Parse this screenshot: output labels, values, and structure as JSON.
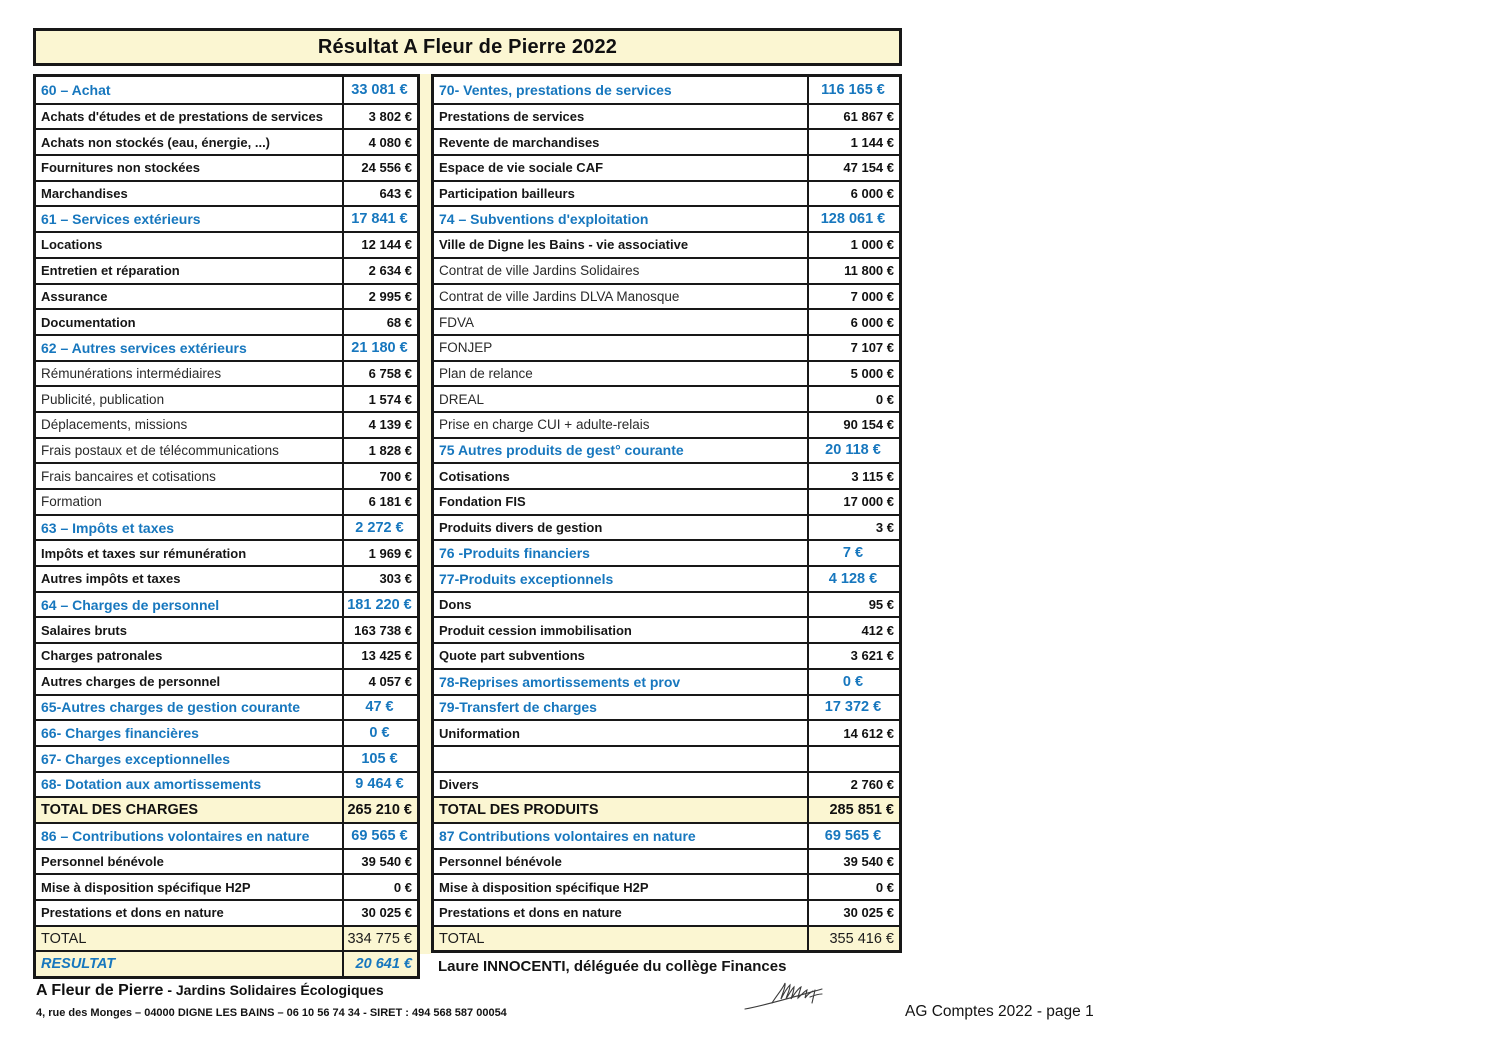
{
  "title": "Résultat A Fleur de Pierre 2022",
  "colors": {
    "accent_blue": "#1777be",
    "cream_background": "#fbf6d2",
    "border": "#181818"
  },
  "charges": {
    "rows": [
      {
        "type": "section",
        "label": "60 – Achat",
        "value": "33 081 €"
      },
      {
        "type": "item",
        "label": "Achats d'études et de prestations de services",
        "value": "3 802 €"
      },
      {
        "type": "item",
        "label": "Achats non stockés (eau, énergie, ...)",
        "value": "4 080 €"
      },
      {
        "type": "item",
        "label": "Fournitures non stockées",
        "value": "24 556 €"
      },
      {
        "type": "item",
        "label": "Marchandises",
        "value": "643 €"
      },
      {
        "type": "section",
        "label": "61 – Services extérieurs",
        "value": "17 841 €"
      },
      {
        "type": "item",
        "label": "Locations",
        "value": "12 144 €"
      },
      {
        "type": "item",
        "label": "Entretien et réparation",
        "value": "2 634 €"
      },
      {
        "type": "item",
        "label": "Assurance",
        "value": "2 995 €"
      },
      {
        "type": "item",
        "label": "Documentation",
        "value": "68 €"
      },
      {
        "type": "section",
        "label": "62 – Autres services extérieurs",
        "value": "21 180 €"
      },
      {
        "type": "item-light",
        "label": "Rémunérations intermédiaires",
        "value": "6 758 €"
      },
      {
        "type": "item-light",
        "label": "Publicité, publication",
        "value": "1 574 €"
      },
      {
        "type": "item-light",
        "label": "Déplacements, missions",
        "value": "4 139 €"
      },
      {
        "type": "item-light",
        "label": "Frais postaux et de télécommunications",
        "value": "1 828 €"
      },
      {
        "type": "item-light",
        "label": "Frais bancaires et cotisations",
        "value": "700 €"
      },
      {
        "type": "item-light",
        "label": "Formation",
        "value": "6 181 €"
      },
      {
        "type": "section",
        "label": "63 – Impôts et taxes",
        "value": "2 272 €"
      },
      {
        "type": "item",
        "label": "Impôts et taxes sur rémunération",
        "value": "1 969 €"
      },
      {
        "type": "item",
        "label": "Autres impôts et taxes",
        "value": "303 €"
      },
      {
        "type": "section",
        "label": "64 – Charges de personnel",
        "value": "181 220 €"
      },
      {
        "type": "item",
        "label": "Salaires bruts",
        "value": "163 738 €"
      },
      {
        "type": "item",
        "label": "Charges patronales",
        "value": "13 425 €"
      },
      {
        "type": "item",
        "label": "Autres charges de personnel",
        "value": "4 057 €"
      },
      {
        "type": "section",
        "label": "65-Autres charges de gestion courante",
        "value": "47 €"
      },
      {
        "type": "section",
        "label": "66- Charges financières",
        "value": "0 €"
      },
      {
        "type": "section",
        "label": "67- Charges exceptionnelles",
        "value": "105 €"
      },
      {
        "type": "section",
        "label": "68- Dotation aux amortissements",
        "value": "9 464 €"
      },
      {
        "type": "total-bold",
        "label": "TOTAL DES CHARGES",
        "value": "265 210 €"
      },
      {
        "type": "section",
        "label": "86 – Contributions volontaires en nature",
        "value": "69 565 €"
      },
      {
        "type": "item",
        "label": "Personnel bénévole",
        "value": "39 540 €"
      },
      {
        "type": "item",
        "label": "Mise à disposition spécifique H2P",
        "value": "0 €"
      },
      {
        "type": "item",
        "label": "Prestations et dons en nature",
        "value": "30 025 €"
      },
      {
        "type": "total",
        "label": "TOTAL",
        "value": "334 775 €"
      },
      {
        "type": "result",
        "label": "RESULTAT",
        "value": "20 641 €"
      }
    ]
  },
  "produits": {
    "rows": [
      {
        "type": "section",
        "label": "70- Ventes, prestations de services",
        "value": "116 165 €"
      },
      {
        "type": "item",
        "label": "Prestations de services",
        "value": "61 867 €"
      },
      {
        "type": "item",
        "label": "Revente de marchandises",
        "value": "1 144 €"
      },
      {
        "type": "item",
        "label": "Espace de vie sociale CAF",
        "value": "47 154 €"
      },
      {
        "type": "item",
        "label": "Participation bailleurs",
        "value": "6 000 €"
      },
      {
        "type": "section",
        "label": "74 – Subventions d'exploitation",
        "value": "128 061 €"
      },
      {
        "type": "item",
        "label": "Ville de Digne les Bains - vie associative",
        "value": "1 000 €"
      },
      {
        "type": "item-light",
        "label": "Contrat de ville Jardins Solidaires",
        "value": "11 800 €"
      },
      {
        "type": "item-light",
        "label": "Contrat de ville Jardins DLVA Manosque",
        "value": "7 000 €"
      },
      {
        "type": "item-light",
        "label": "FDVA",
        "value": "6 000 €"
      },
      {
        "type": "item-light",
        "label": "FONJEP",
        "value": "7 107 €"
      },
      {
        "type": "item-light",
        "label": "Plan de relance",
        "value": "5 000 €"
      },
      {
        "type": "item-light",
        "label": "DREAL",
        "value": "0 €"
      },
      {
        "type": "item-light",
        "label": "Prise en charge CUI + adulte-relais",
        "value": "90 154 €"
      },
      {
        "type": "section",
        "label": "75 Autres produits de gest° courante",
        "value": "20 118 €"
      },
      {
        "type": "item",
        "label": "Cotisations",
        "value": "3 115 €"
      },
      {
        "type": "item",
        "label": "Fondation FIS",
        "value": "17 000 €"
      },
      {
        "type": "item",
        "label": "Produits divers de gestion",
        "value": "3 €"
      },
      {
        "type": "section",
        "label": "76 -Produits financiers",
        "value": "7 €"
      },
      {
        "type": "section",
        "label": "77-Produits exceptionnels",
        "value": "4 128 €"
      },
      {
        "type": "item",
        "label": "Dons",
        "value": "95 €"
      },
      {
        "type": "item",
        "label": "Produit cession immobilisation",
        "value": "412 €"
      },
      {
        "type": "item",
        "label": "Quote part subventions",
        "value": "3 621 €"
      },
      {
        "type": "section",
        "label": "78-Reprises amortissements et prov",
        "value": "0 €"
      },
      {
        "type": "section",
        "label": "79-Transfert de charges",
        "value": "17 372 €"
      },
      {
        "type": "item",
        "label": "Uniformation",
        "value": "14 612 €"
      },
      {
        "type": "empty",
        "label": "",
        "value": ""
      },
      {
        "type": "item",
        "label": "Divers",
        "value": "2 760 €"
      },
      {
        "type": "total-bold",
        "label": "TOTAL DES PRODUITS",
        "value": "285 851 €"
      },
      {
        "type": "section",
        "label": "87 Contributions volontaires en nature",
        "value": "69 565 €"
      },
      {
        "type": "item",
        "label": "Personnel bénévole",
        "value": "39 540 €"
      },
      {
        "type": "item",
        "label": "Mise à disposition spécifique H2P",
        "value": "0 €"
      },
      {
        "type": "item",
        "label": "Prestations et dons en nature",
        "value": "30 025 €"
      },
      {
        "type": "total",
        "label": "TOTAL",
        "value": "355 416 €"
      }
    ]
  },
  "signature_caption": "Laure INNOCENTI, déléguée du collège Finances",
  "footer": {
    "org_name": "A Fleur de Pierre",
    "org_subtitle": " - Jardins Solidaires Écologiques",
    "address": "4, rue des Monges – 04000 DIGNE LES BAINS – 06 10 56 74 34 - SIRET : 494 568 587 00054",
    "page_label": "AG Comptes 2022 - page 1"
  }
}
